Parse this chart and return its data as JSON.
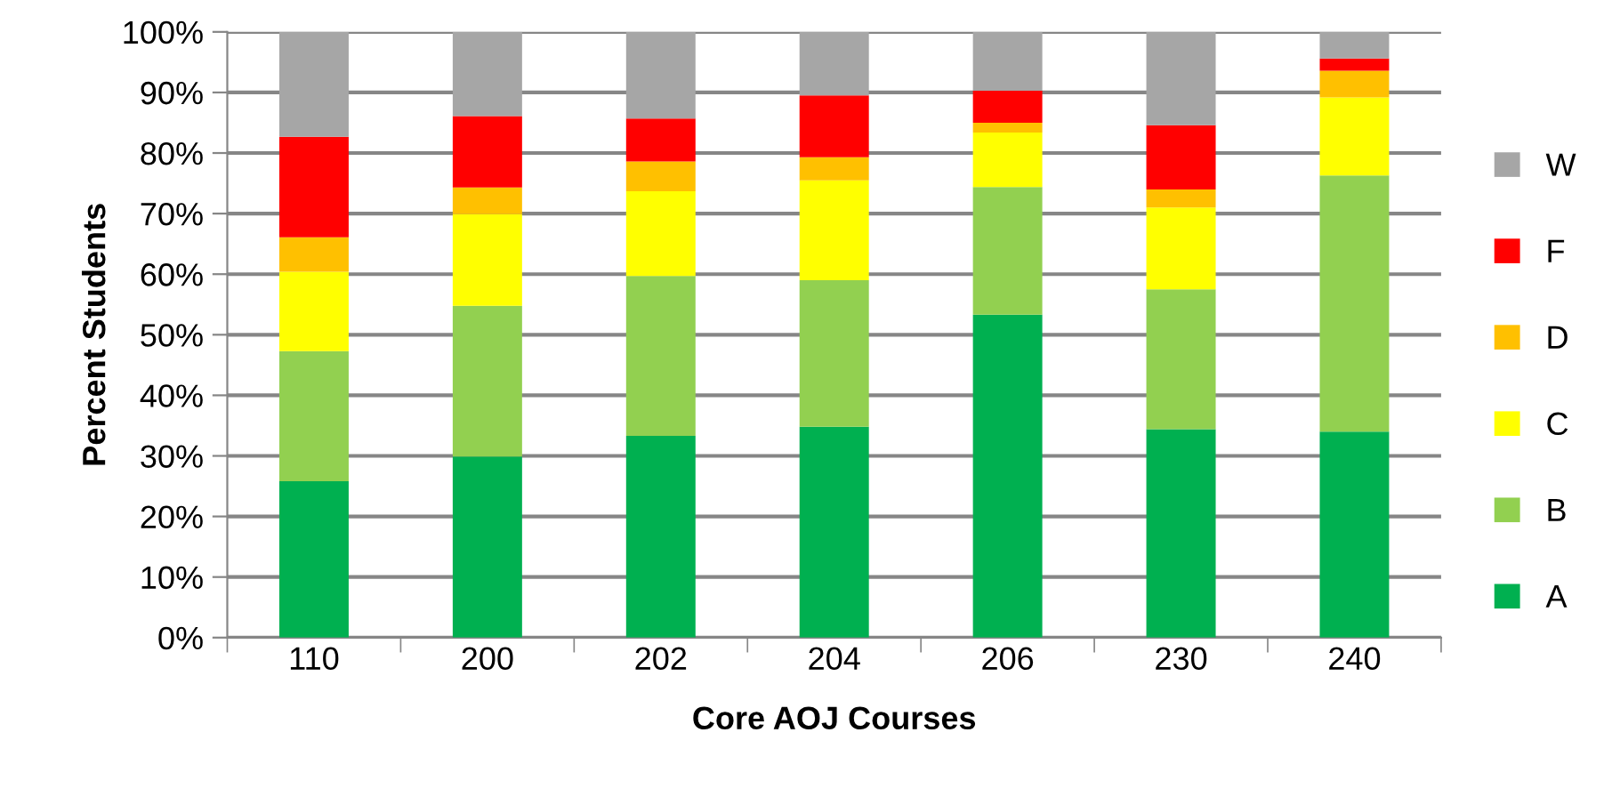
{
  "chart_data": {
    "type": "bar",
    "stacked": true,
    "xlabel": "Core AOJ Courses",
    "ylabel": "Percent Students",
    "categories": [
      "110",
      "200",
      "202",
      "204",
      "206",
      "230",
      "240"
    ],
    "series": [
      {
        "name": "A",
        "color": "#00b050",
        "values": [
          25.8,
          29.9,
          33.3,
          34.8,
          53.3,
          34.4,
          34.0
        ]
      },
      {
        "name": "B",
        "color": "#92d050",
        "values": [
          21.5,
          24.9,
          26.4,
          24.2,
          21.1,
          23.1,
          42.3
        ]
      },
      {
        "name": "C",
        "color": "#ffff00",
        "values": [
          13.1,
          15.1,
          14.0,
          16.5,
          9.0,
          13.5,
          12.9
        ]
      },
      {
        "name": "D",
        "color": "#ffc000",
        "values": [
          5.7,
          4.4,
          4.9,
          3.8,
          1.6,
          3.0,
          4.4
        ]
      },
      {
        "name": "F",
        "color": "#ff0000",
        "values": [
          16.6,
          11.8,
          7.1,
          10.2,
          5.3,
          10.6,
          2.0
        ]
      },
      {
        "name": "W",
        "color": "#a6a6a6",
        "values": [
          17.3,
          13.9,
          14.3,
          10.5,
          9.7,
          15.4,
          4.4
        ]
      }
    ],
    "ylim": [
      0,
      100
    ],
    "yticks": [
      {
        "value": 0,
        "label": "0%"
      },
      {
        "value": 10,
        "label": "10%"
      },
      {
        "value": 20,
        "label": "20%"
      },
      {
        "value": 30,
        "label": "30%"
      },
      {
        "value": 40,
        "label": "40%"
      },
      {
        "value": 50,
        "label": "50%"
      },
      {
        "value": 60,
        "label": "60%"
      },
      {
        "value": 70,
        "label": "70%"
      },
      {
        "value": 80,
        "label": "80%"
      },
      {
        "value": 90,
        "label": "90%"
      },
      {
        "value": 100,
        "label": "100%"
      }
    ],
    "grid": "y",
    "legend": "right"
  }
}
